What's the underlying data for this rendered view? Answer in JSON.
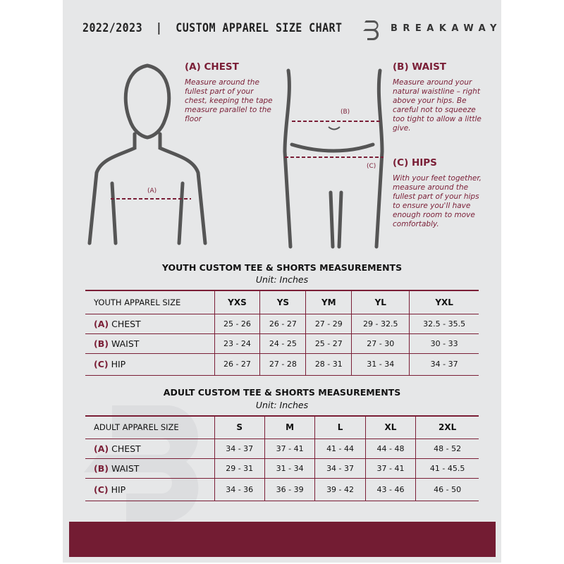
{
  "header": {
    "title": "2022/2023  |  CUSTOM APPAREL SIZE CHART",
    "brand": "BREAKAWAY"
  },
  "chest": {
    "heading": "(A) CHEST",
    "marker": "(A)",
    "description": "Measure around the fullest part of your chest, keeping the tape measure parallel to the floor"
  },
  "waist": {
    "heading": "(B) WAIST",
    "marker": "(B)",
    "description": "Measure around your natural waistline – right above your hips. Be careful not to squeeze too tight to allow a little give."
  },
  "hips": {
    "heading": "(C) HIPS",
    "marker": "(C)",
    "description": "With your feet together, measure around the fullest part of your hips to ensure you'll have enough room to move comfortably."
  },
  "youth": {
    "title": "YOUTH CUSTOM TEE & SHORTS MEASUREMENTS",
    "unit": "Unit: Inches",
    "header": [
      "YOUTH APPAREL SIZE",
      "YXS",
      "YS",
      "YM",
      "YL",
      "YXL"
    ],
    "rows": [
      {
        "tag": "(A)",
        "label": "CHEST",
        "values": [
          "25 - 26",
          "26 - 27",
          "27 - 29",
          "29 - 32.5",
          "32.5 - 35.5"
        ]
      },
      {
        "tag": "(B)",
        "label": "WAIST",
        "values": [
          "23 - 24",
          "24 - 25",
          "25 - 27",
          "27 - 30",
          "30 - 33"
        ]
      },
      {
        "tag": "(C)",
        "label": "HIP",
        "values": [
          "26 - 27",
          "27 - 28",
          "28 - 31",
          "31 - 34",
          "34 - 37"
        ]
      }
    ]
  },
  "adult": {
    "title": "ADULT CUSTOM TEE & SHORTS MEASUREMENTS",
    "unit": "Unit: Inches",
    "header": [
      "ADULT APPAREL SIZE",
      "S",
      "M",
      "L",
      "XL",
      "2XL"
    ],
    "rows": [
      {
        "tag": "(A)",
        "label": "CHEST",
        "values": [
          "34 - 37",
          "37 - 41",
          "41 - 44",
          "44 - 48",
          "48 - 52"
        ]
      },
      {
        "tag": "(B)",
        "label": "WAIST",
        "values": [
          "29 - 31",
          "31 - 34",
          "34 - 37",
          "37 - 41",
          "41 - 45.5"
        ]
      },
      {
        "tag": "(C)",
        "label": "HIP",
        "values": [
          "34 - 36",
          "36 - 39",
          "39 - 42",
          "43 - 46",
          "46 - 50"
        ]
      }
    ]
  },
  "colors": {
    "accent": "#7a1e36",
    "band": "#731c33",
    "page": "#e6e7e8"
  }
}
